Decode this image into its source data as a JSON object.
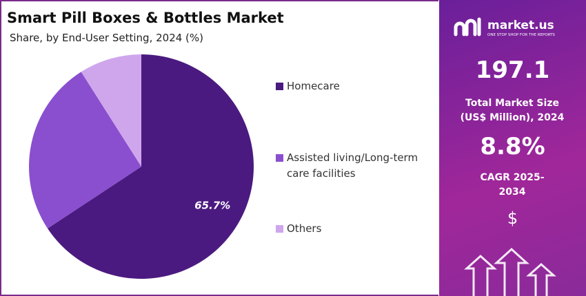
{
  "chart_data": {
    "type": "pie",
    "title": "Smart Pill Boxes & Bottles Market",
    "subtitle": "Share, by End-User Setting, 2024 (%)",
    "categories": [
      "Homecare",
      "Assisted living/Long-term care facilities",
      "Others"
    ],
    "values": [
      65.7,
      25.3,
      9.0
    ],
    "value_labels": [
      "65.7%",
      null,
      null
    ],
    "colors": [
      "#4b1a80",
      "#8a4fcf",
      "#cfa6ec"
    ]
  },
  "side_panel": {
    "brand": "market.us",
    "tagline": "ONE STOP SHOP FOR THE REPORTS",
    "market_size": "197.1",
    "market_size_label": "Total Market Size (US$ Million), 2024",
    "cagr": "8.8%",
    "cagr_label": "CAGR 2025-2034",
    "currency": "$"
  }
}
